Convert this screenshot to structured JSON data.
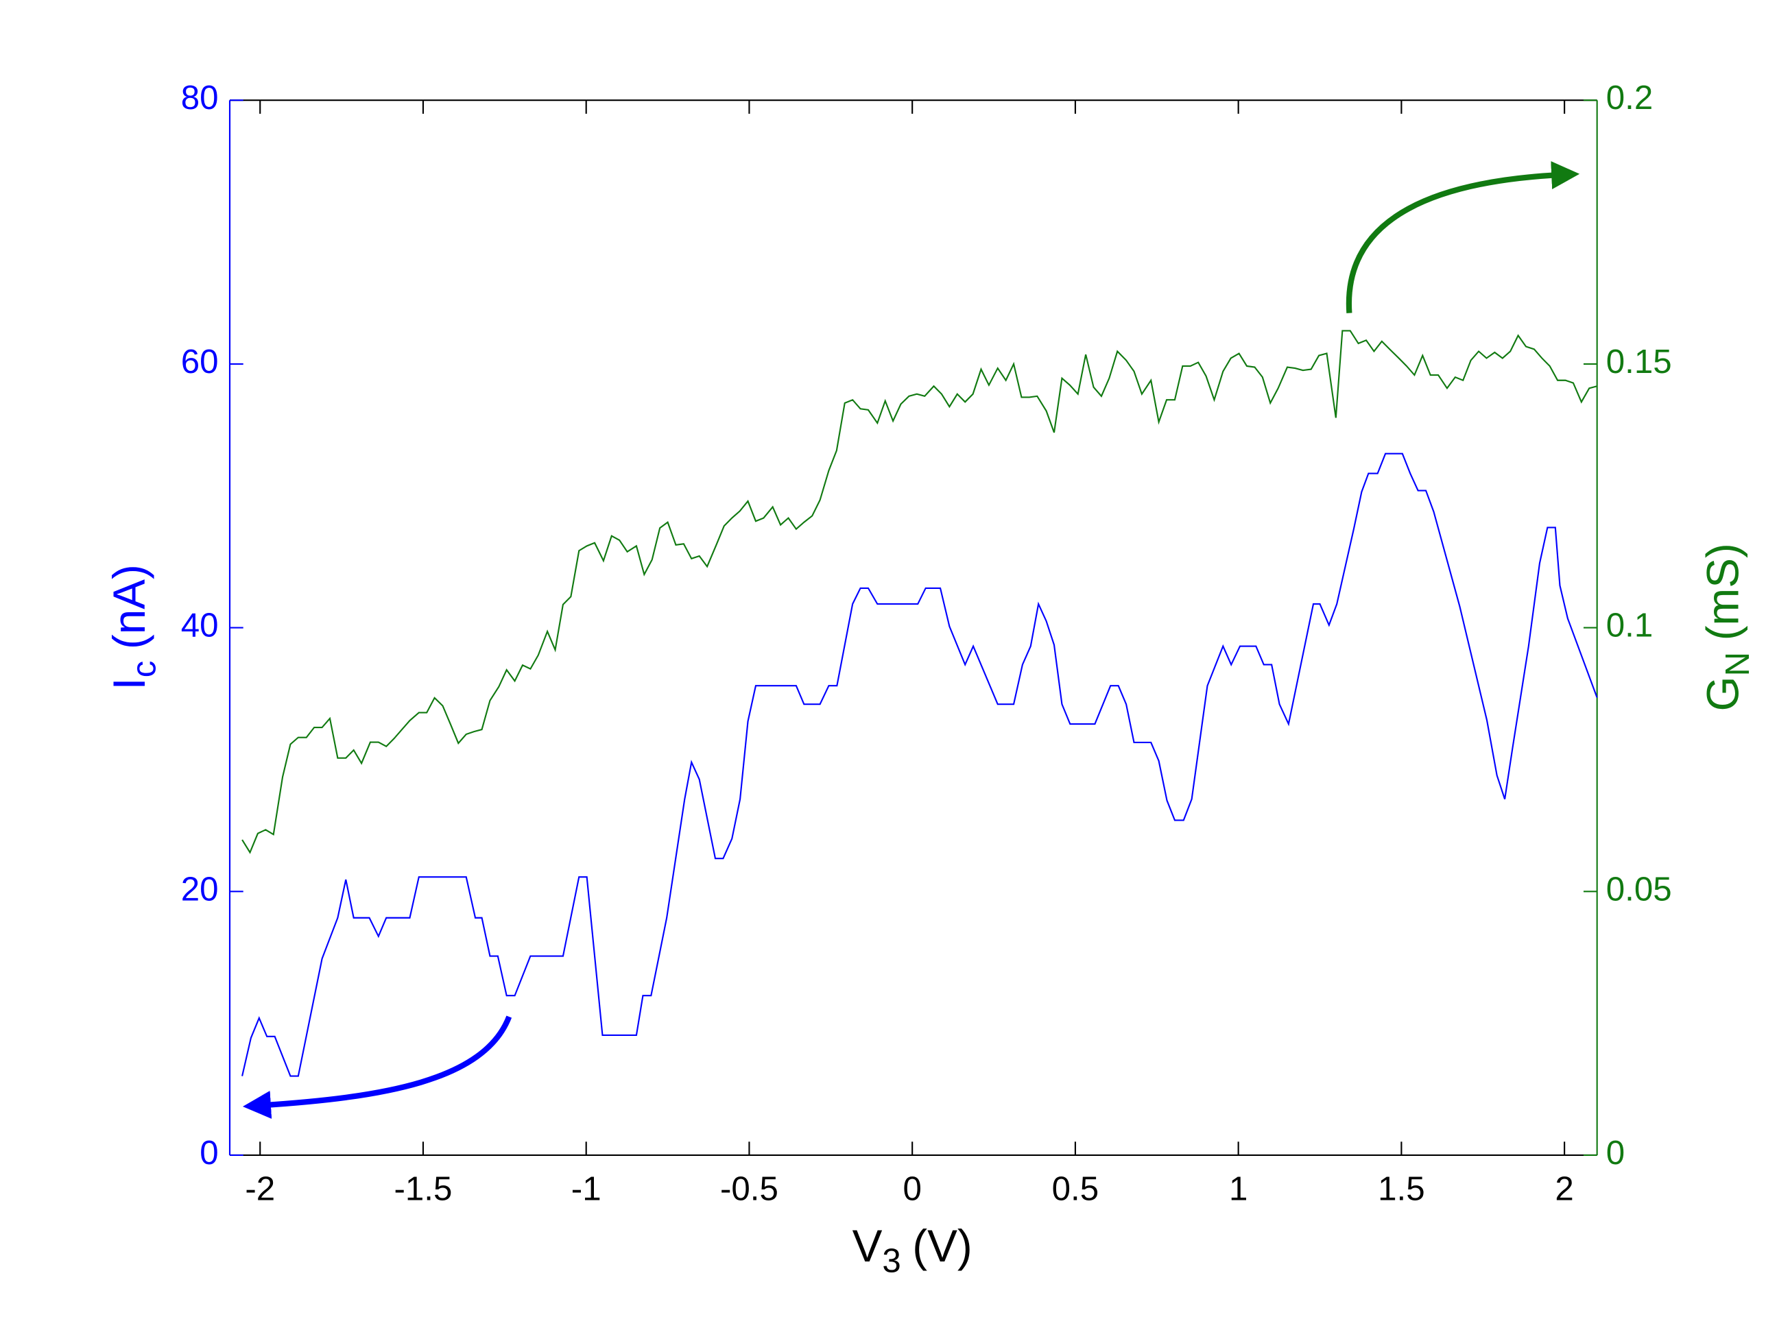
{
  "chart_data": {
    "type": "line",
    "xlabel": [
      "V",
      "3",
      "(V)"
    ],
    "ylabel": [
      "I",
      "c",
      "(nA)"
    ],
    "y2label": [
      "G",
      "N",
      "(mS)"
    ],
    "xlim": [
      -2.093,
      2.1
    ],
    "xticks": [
      -2,
      -1.5,
      -1,
      -0.5,
      0,
      0.5,
      1,
      1.5,
      2
    ],
    "ylim": [
      0,
      80
    ],
    "yticks": [
      0,
      20,
      40,
      60,
      80
    ],
    "y2lim": [
      0,
      0.2
    ],
    "y2ticks": [
      0,
      0.05,
      0.1,
      0.15,
      0.2
    ],
    "grid": false,
    "series": [
      {
        "color": "#0000ff",
        "axis": "y",
        "x": [
          -2.055,
          -2.028,
          -2.003,
          -1.979,
          -1.955,
          -1.907,
          -1.883,
          -1.81,
          -1.762,
          -1.737,
          -1.713,
          -1.665,
          -1.637,
          -1.613,
          -1.541,
          -1.513,
          -1.368,
          -1.34,
          -1.32,
          -1.295,
          -1.271,
          -1.244,
          -1.219,
          -1.171,
          -1.071,
          -1.022,
          -0.998,
          -0.95,
          -0.846,
          -0.826,
          -0.801,
          -0.753,
          -0.698,
          -0.677,
          -0.653,
          -0.604,
          -0.58,
          -0.553,
          -0.528,
          -0.504,
          -0.48,
          -0.356,
          -0.332,
          -0.283,
          -0.256,
          -0.231,
          -0.183,
          -0.159,
          -0.135,
          -0.107,
          0.017,
          0.041,
          0.086,
          0.114,
          0.162,
          0.187,
          0.262,
          0.311,
          0.338,
          0.363,
          0.387,
          0.411,
          0.435,
          0.459,
          0.484,
          0.56,
          0.608,
          0.632,
          0.656,
          0.68,
          0.732,
          0.756,
          0.781,
          0.805,
          0.832,
          0.857,
          0.905,
          0.953,
          0.978,
          1.005,
          1.054,
          1.078,
          1.102,
          1.126,
          1.154,
          1.23,
          1.25,
          1.278,
          1.302,
          1.354,
          1.378,
          1.399,
          1.427,
          1.451,
          1.503,
          1.527,
          1.551,
          1.575,
          1.599,
          1.679,
          1.762,
          1.793,
          1.817,
          1.841,
          1.89,
          1.924,
          1.948,
          1.972,
          1.986,
          2.01,
          2.1
        ],
        "values": [
          6.0,
          8.9,
          10.4,
          9.0,
          9.0,
          6.0,
          6.0,
          14.9,
          18.0,
          20.9,
          18.0,
          18.0,
          16.6,
          18.0,
          18.0,
          21.1,
          21.1,
          18.0,
          18.0,
          15.1,
          15.1,
          12.1,
          12.1,
          15.1,
          15.1,
          21.1,
          21.1,
          9.1,
          9.1,
          12.1,
          12.1,
          18.0,
          27.0,
          29.8,
          28.5,
          22.5,
          22.5,
          24.0,
          27.0,
          32.9,
          35.6,
          35.6,
          34.2,
          34.2,
          35.6,
          35.6,
          41.8,
          43.0,
          43.0,
          41.8,
          41.8,
          43.0,
          43.0,
          40.1,
          37.2,
          38.6,
          34.2,
          34.2,
          37.2,
          38.6,
          41.8,
          40.5,
          38.7,
          34.2,
          32.7,
          32.7,
          35.6,
          35.6,
          34.2,
          31.3,
          31.3,
          29.9,
          26.9,
          25.4,
          25.4,
          27.0,
          35.6,
          38.6,
          37.2,
          38.6,
          38.6,
          37.2,
          37.2,
          34.2,
          32.7,
          41.8,
          41.8,
          40.2,
          41.8,
          47.5,
          50.3,
          51.7,
          51.7,
          53.2,
          53.2,
          51.7,
          50.4,
          50.4,
          48.8,
          41.6,
          33.0,
          28.8,
          27.0,
          30.9,
          38.6,
          44.9,
          47.6,
          47.6,
          43.2,
          40.7,
          34.7
        ]
      },
      {
        "color": "#117a11",
        "axis": "y2",
        "x": [
          -2.055,
          -2.031,
          -2.007,
          -1.983,
          -1.959,
          -1.931,
          -1.907,
          -1.883,
          -1.858,
          -1.834,
          -1.81,
          -1.786,
          -1.762,
          -1.737,
          -1.713,
          -1.689,
          -1.662,
          -1.637,
          -1.613,
          -1.589,
          -1.565,
          -1.541,
          -1.513,
          -1.489,
          -1.465,
          -1.44,
          -1.416,
          -1.392,
          -1.368,
          -1.344,
          -1.32,
          -1.295,
          -1.268,
          -1.244,
          -1.219,
          -1.195,
          -1.171,
          -1.147,
          -1.119,
          -1.095,
          -1.071,
          -1.047,
          -1.022,
          -0.998,
          -0.974,
          -0.947,
          -0.922,
          -0.898,
          -0.874,
          -0.846,
          -0.822,
          -0.798,
          -0.774,
          -0.75,
          -0.725,
          -0.701,
          -0.677,
          -0.653,
          -0.629,
          -0.601,
          -0.577,
          -0.553,
          -0.529,
          -0.504,
          -0.48,
          -0.456,
          -0.428,
          -0.404,
          -0.38,
          -0.356,
          -0.332,
          -0.307,
          -0.283,
          -0.256,
          -0.232,
          -0.207,
          -0.183,
          -0.159,
          -0.135,
          -0.107,
          -0.083,
          -0.059,
          -0.035,
          -0.01,
          0.014,
          0.038,
          0.066,
          0.09,
          0.114,
          0.138,
          0.162,
          0.186,
          0.211,
          0.235,
          0.262,
          0.287,
          0.311,
          0.335,
          0.359,
          0.383,
          0.411,
          0.435,
          0.459,
          0.483,
          0.508,
          0.532,
          0.556,
          0.58,
          0.604,
          0.629,
          0.656,
          0.68,
          0.704,
          0.732,
          0.756,
          0.78,
          0.805,
          0.829,
          0.853,
          0.877,
          0.901,
          0.926,
          0.953,
          0.977,
          1.002,
          1.026,
          1.05,
          1.074,
          1.098,
          1.122,
          1.15,
          1.174,
          1.198,
          1.223,
          1.247,
          1.271,
          1.299,
          1.319,
          1.343,
          1.368,
          1.392,
          1.416,
          1.44,
          1.464,
          1.492,
          1.516,
          1.54,
          1.565,
          1.589,
          1.613,
          1.64,
          1.665,
          1.689,
          1.713,
          1.737,
          1.761,
          1.786,
          1.81,
          1.834,
          1.858,
          1.882,
          1.907,
          1.931,
          1.955,
          1.979,
          2.003,
          2.027,
          2.052,
          2.076,
          2.1
        ],
        "values": [
          0.0598,
          0.0574,
          0.061,
          0.0617,
          0.0608,
          0.0717,
          0.0779,
          0.0792,
          0.0792,
          0.0811,
          0.0811,
          0.0828,
          0.0753,
          0.0753,
          0.0768,
          0.0743,
          0.0783,
          0.0783,
          0.0775,
          0.079,
          0.0807,
          0.0824,
          0.0839,
          0.0839,
          0.0867,
          0.0852,
          0.0817,
          0.0781,
          0.0798,
          0.0803,
          0.0807,
          0.0862,
          0.0888,
          0.092,
          0.0899,
          0.0929,
          0.0922,
          0.0948,
          0.0993,
          0.0958,
          0.1044,
          0.1059,
          0.1146,
          0.1155,
          0.1161,
          0.1127,
          0.1174,
          0.1166,
          0.1144,
          0.1155,
          0.1101,
          0.1129,
          0.1189,
          0.12,
          0.1157,
          0.1159,
          0.1131,
          0.1136,
          0.1116,
          0.1157,
          0.1193,
          0.1208,
          0.1221,
          0.124,
          0.1202,
          0.1208,
          0.1229,
          0.1195,
          0.1208,
          0.1187,
          0.12,
          0.1212,
          0.1242,
          0.1298,
          0.1336,
          0.1426,
          0.1432,
          0.1415,
          0.1413,
          0.1388,
          0.143,
          0.1392,
          0.1424,
          0.1439,
          0.1443,
          0.1439,
          0.1458,
          0.1443,
          0.1419,
          0.1443,
          0.1428,
          0.1443,
          0.149,
          0.146,
          0.1492,
          0.1469,
          0.15,
          0.1437,
          0.1437,
          0.1439,
          0.1411,
          0.137,
          0.1473,
          0.146,
          0.1443,
          0.1518,
          0.1456,
          0.1439,
          0.1473,
          0.1524,
          0.1507,
          0.1486,
          0.1443,
          0.1469,
          0.139,
          0.1432,
          0.1432,
          0.1496,
          0.1496,
          0.1503,
          0.1477,
          0.1432,
          0.1486,
          0.1511,
          0.152,
          0.1496,
          0.1494,
          0.1475,
          0.1426,
          0.1454,
          0.1494,
          0.1492,
          0.1488,
          0.149,
          0.1516,
          0.152,
          0.1398,
          0.1563,
          0.1563,
          0.1539,
          0.1545,
          0.1524,
          0.1543,
          0.1528,
          0.1511,
          0.1496,
          0.1479,
          0.1516,
          0.1479,
          0.1479,
          0.1454,
          0.1475,
          0.1469,
          0.1507,
          0.1524,
          0.1511,
          0.1522,
          0.1511,
          0.1524,
          0.1554,
          0.1533,
          0.1528,
          0.1511,
          0.1496,
          0.1469,
          0.1469,
          0.1464,
          0.1428,
          0.1454,
          0.1458
        ]
      }
    ]
  }
}
